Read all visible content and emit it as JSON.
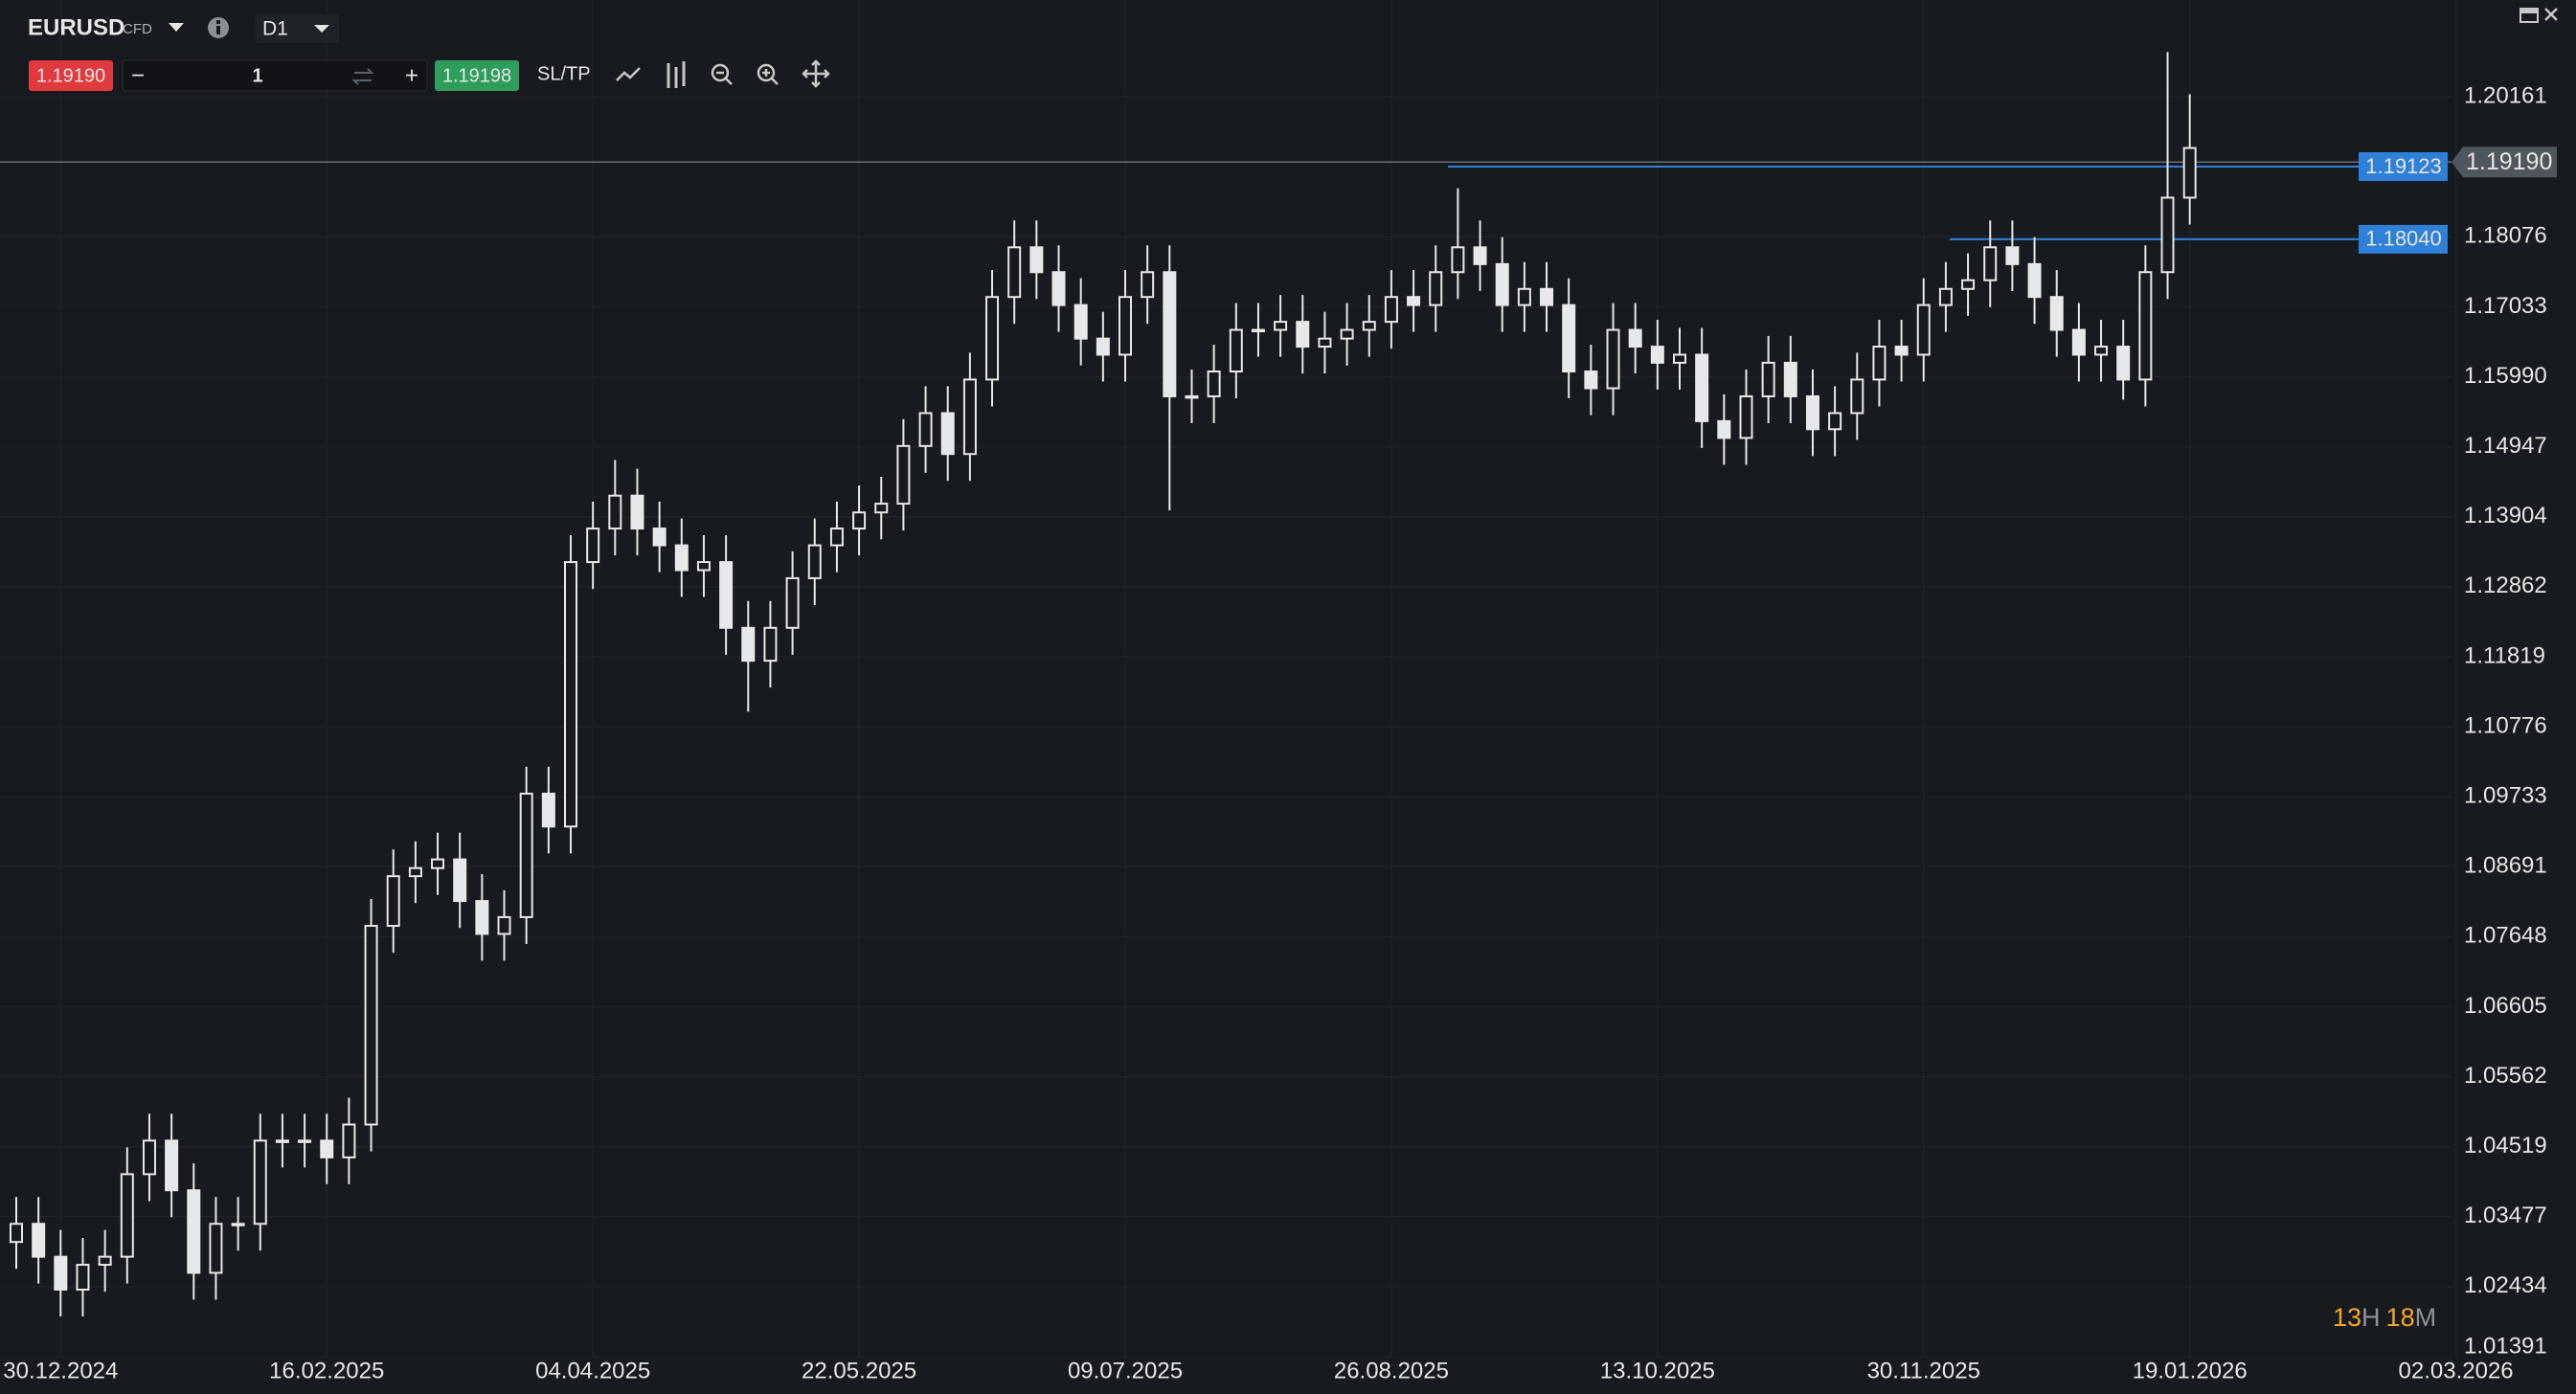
{
  "toolbar": {
    "symbol": "EURUSD",
    "symbol_type": "CFD",
    "timeframe": "D1",
    "sell_price": "1.19190",
    "quantity": "1",
    "buy_price": "1.19198",
    "sltp": "SL/TP"
  },
  "chart_data": {
    "type": "candlestick",
    "categories": [
      null,
      null,
      "30.12.2024",
      null,
      null,
      null,
      null,
      null,
      null,
      null,
      null,
      null,
      null,
      null,
      "16.02.2025",
      null,
      null,
      null,
      null,
      null,
      null,
      null,
      null,
      null,
      null,
      null,
      "04.04.2025",
      null,
      null,
      null,
      null,
      null,
      null,
      null,
      null,
      null,
      null,
      null,
      "22.05.2025",
      null,
      null,
      null,
      null,
      null,
      null,
      null,
      null,
      null,
      null,
      null,
      "09.07.2025",
      null,
      null,
      null,
      null,
      null,
      null,
      null,
      null,
      null,
      null,
      null,
      "26.08.2025",
      null,
      null,
      null,
      null,
      null,
      null,
      null,
      null,
      null,
      null,
      null,
      "13.10.2025",
      null,
      null,
      null,
      null,
      null,
      null,
      null,
      null,
      null,
      null,
      null,
      "30.11.2025",
      null,
      null,
      null,
      null,
      null,
      null,
      null,
      null,
      null,
      null,
      null,
      "19.01.2026",
      null,
      null,
      null,
      null,
      null,
      null,
      null,
      null,
      null,
      null,
      null,
      "02.03.2026"
    ],
    "open": [
      1.031,
      1.0337,
      1.0288,
      1.0239,
      1.0276,
      1.0288,
      1.0411,
      1.0461,
      1.0387,
      1.0264,
      1.0337,
      1.0337,
      1.0461,
      1.0461,
      1.0461,
      1.0436,
      1.0485,
      1.0781,
      1.0855,
      1.0867,
      1.088,
      1.0818,
      1.0769,
      1.0794,
      1.0978,
      1.0929,
      1.1323,
      1.1373,
      1.1422,
      1.1373,
      1.1348,
      1.1311,
      1.1323,
      1.1225,
      1.1176,
      1.1225,
      1.1299,
      1.1348,
      1.1373,
      1.1397,
      1.141,
      1.1496,
      1.1545,
      1.1484,
      1.1595,
      1.1718,
      1.1792,
      1.1755,
      1.1706,
      1.1656,
      1.1632,
      1.1718,
      1.1755,
      1.157,
      1.157,
      1.1607,
      1.1669,
      1.1669,
      1.1681,
      1.1644,
      1.1656,
      1.1669,
      1.1681,
      1.1718,
      1.1706,
      1.1755,
      1.1792,
      1.1767,
      1.1706,
      1.173,
      1.1706,
      1.1607,
      1.1582,
      1.1669,
      1.1644,
      1.162,
      1.1632,
      1.1533,
      1.1508,
      1.157,
      1.162,
      1.157,
      1.1521,
      1.1545,
      1.1595,
      1.1644,
      1.1632,
      1.1706,
      1.173,
      1.1743,
      1.1792,
      1.1767,
      1.1718,
      1.1669,
      1.1632,
      1.1644,
      1.1595,
      1.1755,
      1.1866,
      null,
      null,
      null,
      null,
      null,
      null,
      null,
      null,
      null,
      null,
      null,
      null
    ],
    "high": [
      1.0377,
      1.0377,
      1.0328,
      1.0316,
      1.0328,
      1.0451,
      1.0501,
      1.0501,
      1.0427,
      1.0377,
      1.0377,
      1.0501,
      1.0501,
      1.0501,
      1.0501,
      1.0525,
      1.0821,
      1.0895,
      1.0907,
      1.092,
      1.092,
      1.0858,
      1.0834,
      1.1018,
      1.1018,
      1.1363,
      1.1413,
      1.1475,
      1.1462,
      1.1413,
      1.1388,
      1.1363,
      1.1363,
      1.1265,
      1.1265,
      1.1339,
      1.1388,
      1.1413,
      1.1437,
      1.145,
      1.1536,
      1.1585,
      1.1585,
      1.1635,
      1.1758,
      1.1832,
      1.1832,
      1.1795,
      1.1746,
      1.1696,
      1.1758,
      1.1795,
      1.1795,
      1.161,
      1.1647,
      1.1709,
      1.1709,
      1.1721,
      1.1721,
      1.1696,
      1.1709,
      1.1721,
      1.1758,
      1.1758,
      1.1795,
      1.188,
      1.1832,
      1.1807,
      1.177,
      1.177,
      1.1746,
      1.1647,
      1.1709,
      1.1709,
      1.1684,
      1.1672,
      1.1672,
      1.1573,
      1.161,
      1.166,
      1.166,
      1.161,
      1.1585,
      1.1635,
      1.1684,
      1.1684,
      1.1746,
      1.177,
      1.1783,
      1.1832,
      1.1832,
      1.1807,
      1.1758,
      1.1709,
      1.1684,
      1.1684,
      1.1795,
      1.2083,
      1.202,
      null,
      null,
      null,
      null,
      null,
      null,
      null,
      null,
      null,
      null,
      null,
      null
    ],
    "low": [
      1.027,
      1.0248,
      1.0199,
      1.0199,
      1.0236,
      1.0248,
      1.0371,
      1.0347,
      1.0224,
      1.0224,
      1.0297,
      1.0297,
      1.0421,
      1.0421,
      1.0396,
      1.0396,
      1.0445,
      1.0741,
      1.0815,
      1.0827,
      1.0778,
      1.0729,
      1.0729,
      1.0754,
      1.0889,
      1.0889,
      1.1283,
      1.1333,
      1.1333,
      1.1308,
      1.1271,
      1.1271,
      1.1185,
      1.11,
      1.1136,
      1.1185,
      1.1259,
      1.1308,
      1.1333,
      1.1357,
      1.137,
      1.1456,
      1.1444,
      1.1444,
      1.1555,
      1.1678,
      1.1715,
      1.1666,
      1.1616,
      1.1592,
      1.1592,
      1.1678,
      1.14,
      1.153,
      1.153,
      1.1567,
      1.1629,
      1.1629,
      1.1604,
      1.1604,
      1.1616,
      1.1629,
      1.1641,
      1.1666,
      1.1666,
      1.1715,
      1.1727,
      1.1666,
      1.1666,
      1.1666,
      1.1567,
      1.1542,
      1.1542,
      1.1604,
      1.158,
      1.158,
      1.1493,
      1.1468,
      1.1468,
      1.153,
      1.153,
      1.1481,
      1.1481,
      1.1505,
      1.1555,
      1.1592,
      1.1592,
      1.1666,
      1.169,
      1.1703,
      1.1727,
      1.1678,
      1.1629,
      1.1592,
      1.1592,
      1.1565,
      1.1555,
      1.1715,
      1.1826,
      null,
      null,
      null,
      null,
      null,
      null,
      null,
      null,
      null,
      null,
      null,
      null
    ],
    "close": [
      1.0337,
      1.0288,
      1.0239,
      1.0276,
      1.0288,
      1.0411,
      1.0461,
      1.0387,
      1.0264,
      1.0337,
      1.0337,
      1.0461,
      1.0461,
      1.0461,
      1.0436,
      1.0485,
      1.0781,
      1.0855,
      1.0867,
      1.088,
      1.0818,
      1.0769,
      1.0794,
      1.0978,
      1.0929,
      1.1323,
      1.1373,
      1.1422,
      1.1373,
      1.1348,
      1.1311,
      1.1323,
      1.1225,
      1.1176,
      1.1225,
      1.1299,
      1.1348,
      1.1373,
      1.1397,
      1.141,
      1.1496,
      1.1545,
      1.1484,
      1.1595,
      1.1718,
      1.1792,
      1.1755,
      1.1706,
      1.1656,
      1.1632,
      1.1718,
      1.1755,
      1.157,
      1.157,
      1.1607,
      1.1669,
      1.1669,
      1.1681,
      1.1644,
      1.1656,
      1.1669,
      1.1681,
      1.1718,
      1.1706,
      1.1755,
      1.1792,
      1.1767,
      1.1706,
      1.173,
      1.1706,
      1.1607,
      1.1582,
      1.1669,
      1.1644,
      1.162,
      1.1632,
      1.1533,
      1.1508,
      1.157,
      1.162,
      1.157,
      1.1521,
      1.1545,
      1.1595,
      1.1644,
      1.1632,
      1.1706,
      1.173,
      1.1743,
      1.1792,
      1.1767,
      1.1718,
      1.1669,
      1.1632,
      1.1644,
      1.1595,
      1.1755,
      1.1866,
      1.194,
      null,
      null,
      null,
      null,
      null,
      null,
      null,
      null,
      null,
      null,
      null,
      null
    ],
    "color": "#e8e8e8",
    "ylim": [
      1.01391,
      1.21605
    ],
    "yticks": [
      1.20161,
      1.18076,
      1.17033,
      {
        "value": 1.1599,
        "label": "1.15990"
      },
      1.14947,
      1.13904,
      1.12862,
      1.11819,
      1.10776,
      1.09733,
      1.08691,
      1.07648,
      1.06605,
      1.05562,
      1.04519,
      1.03477,
      1.02434,
      1.01391
    ],
    "grid": true,
    "current_price": {
      "value": 1.1919,
      "label": "1.19190"
    },
    "order_lines": [
      {
        "value": 1.19123,
        "label": "1.19123",
        "color": "#2f80d8"
      },
      {
        "value": 1.1804,
        "label": "1.18040",
        "color": "#2f80d8"
      }
    ]
  },
  "timer": {
    "hours": "13",
    "hours_unit": "H",
    "minutes": "18",
    "minutes_unit": "M"
  }
}
